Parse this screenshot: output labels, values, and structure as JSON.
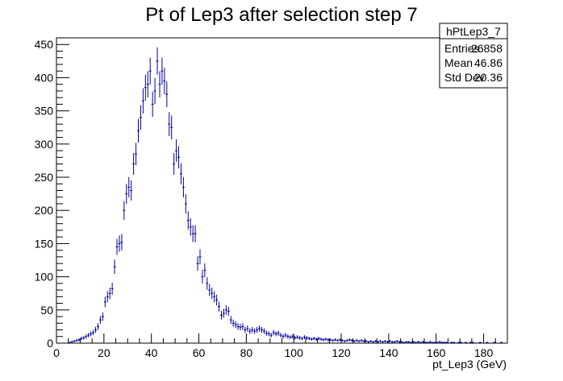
{
  "chart_data": {
    "type": "histogram",
    "title": "Pt of Lep3 after selection step 7",
    "xlabel": "pt_Lep3  (GeV)",
    "ylabel": "",
    "xlim": [
      0,
      190
    ],
    "ylim": [
      0,
      460
    ],
    "bin_width": 1,
    "error_bars": true,
    "marker_color": "#000099",
    "x_ticks": [
      0,
      20,
      40,
      60,
      80,
      100,
      120,
      140,
      160,
      180
    ],
    "y_ticks": [
      0,
      50,
      100,
      150,
      200,
      250,
      300,
      350,
      400,
      450
    ],
    "bins": [
      [
        0,
        0
      ],
      [
        1,
        0
      ],
      [
        2,
        0
      ],
      [
        3,
        0
      ],
      [
        4,
        0
      ],
      [
        5,
        1
      ],
      [
        6,
        2
      ],
      [
        7,
        3
      ],
      [
        8,
        4
      ],
      [
        9,
        5
      ],
      [
        10,
        7
      ],
      [
        11,
        8
      ],
      [
        12,
        10
      ],
      [
        13,
        12
      ],
      [
        14,
        14
      ],
      [
        15,
        16
      ],
      [
        16,
        20
      ],
      [
        17,
        25
      ],
      [
        18,
        35
      ],
      [
        19,
        40
      ],
      [
        20,
        62
      ],
      [
        21,
        70
      ],
      [
        22,
        75
      ],
      [
        23,
        82
      ],
      [
        24,
        115
      ],
      [
        25,
        145
      ],
      [
        26,
        150
      ],
      [
        27,
        152
      ],
      [
        28,
        200
      ],
      [
        29,
        225
      ],
      [
        30,
        235
      ],
      [
        31,
        230
      ],
      [
        32,
        270
      ],
      [
        33,
        285
      ],
      [
        34,
        320
      ],
      [
        35,
        340
      ],
      [
        36,
        365
      ],
      [
        37,
        385
      ],
      [
        38,
        390
      ],
      [
        39,
        410
      ],
      [
        40,
        360
      ],
      [
        41,
        380
      ],
      [
        42,
        425
      ],
      [
        43,
        390
      ],
      [
        44,
        410
      ],
      [
        45,
        395
      ],
      [
        46,
        375
      ],
      [
        47,
        330
      ],
      [
        48,
        325
      ],
      [
        49,
        270
      ],
      [
        50,
        290
      ],
      [
        51,
        280
      ],
      [
        52,
        255
      ],
      [
        53,
        235
      ],
      [
        54,
        210
      ],
      [
        55,
        185
      ],
      [
        56,
        175
      ],
      [
        57,
        165
      ],
      [
        58,
        165
      ],
      [
        59,
        120
      ],
      [
        60,
        130
      ],
      [
        61,
        100
      ],
      [
        62,
        110
      ],
      [
        63,
        90
      ],
      [
        64,
        80
      ],
      [
        65,
        75
      ],
      [
        66,
        70
      ],
      [
        67,
        65
      ],
      [
        68,
        55
      ],
      [
        69,
        42
      ],
      [
        70,
        45
      ],
      [
        71,
        50
      ],
      [
        72,
        48
      ],
      [
        73,
        35
      ],
      [
        74,
        30
      ],
      [
        75,
        28
      ],
      [
        76,
        25
      ],
      [
        77,
        24
      ],
      [
        78,
        25
      ],
      [
        79,
        20
      ],
      [
        80,
        22
      ],
      [
        81,
        18
      ],
      [
        82,
        20
      ],
      [
        83,
        18
      ],
      [
        84,
        20
      ],
      [
        85,
        22
      ],
      [
        86,
        20
      ],
      [
        87,
        18
      ],
      [
        88,
        15
      ],
      [
        89,
        14
      ],
      [
        90,
        12
      ],
      [
        91,
        16
      ],
      [
        92,
        14
      ],
      [
        93,
        15
      ],
      [
        94,
        12
      ],
      [
        95,
        10
      ],
      [
        96,
        12
      ],
      [
        97,
        10
      ],
      [
        98,
        9
      ],
      [
        99,
        10
      ],
      [
        100,
        8
      ],
      [
        101,
        9
      ],
      [
        102,
        8
      ],
      [
        103,
        7
      ],
      [
        104,
        9
      ],
      [
        105,
        8
      ],
      [
        106,
        7
      ],
      [
        107,
        6
      ],
      [
        108,
        7
      ],
      [
        109,
        6
      ],
      [
        110,
        7
      ],
      [
        111,
        6
      ],
      [
        112,
        5
      ],
      [
        113,
        6
      ],
      [
        114,
        5
      ],
      [
        115,
        5
      ],
      [
        116,
        4
      ],
      [
        117,
        5
      ],
      [
        118,
        4
      ],
      [
        119,
        5
      ],
      [
        120,
        4
      ],
      [
        121,
        3
      ],
      [
        122,
        4
      ],
      [
        123,
        5
      ],
      [
        124,
        4
      ],
      [
        125,
        3
      ],
      [
        126,
        4
      ],
      [
        127,
        3
      ],
      [
        128,
        4
      ],
      [
        129,
        3
      ],
      [
        130,
        3
      ],
      [
        131,
        2
      ],
      [
        132,
        3
      ],
      [
        133,
        2
      ],
      [
        134,
        3
      ],
      [
        135,
        2
      ],
      [
        136,
        3
      ],
      [
        137,
        2
      ],
      [
        138,
        3
      ],
      [
        139,
        2
      ],
      [
        140,
        3
      ],
      [
        141,
        2
      ],
      [
        142,
        2
      ],
      [
        143,
        3
      ],
      [
        144,
        2
      ],
      [
        145,
        2
      ],
      [
        146,
        1
      ],
      [
        147,
        2
      ],
      [
        148,
        2
      ],
      [
        149,
        1
      ],
      [
        150,
        2
      ],
      [
        151,
        1
      ],
      [
        152,
        2
      ],
      [
        153,
        1
      ],
      [
        154,
        2
      ],
      [
        155,
        1
      ],
      [
        156,
        1
      ],
      [
        157,
        2
      ],
      [
        158,
        1
      ],
      [
        159,
        1
      ],
      [
        160,
        1
      ],
      [
        161,
        2
      ],
      [
        162,
        1
      ],
      [
        163,
        1
      ],
      [
        164,
        1
      ],
      [
        165,
        0
      ],
      [
        166,
        1
      ],
      [
        167,
        1
      ],
      [
        168,
        0
      ],
      [
        169,
        1
      ],
      [
        170,
        1
      ],
      [
        171,
        0
      ],
      [
        172,
        1
      ],
      [
        173,
        0
      ],
      [
        174,
        1
      ],
      [
        175,
        1
      ],
      [
        176,
        0
      ],
      [
        177,
        0
      ],
      [
        178,
        1
      ],
      [
        179,
        0
      ],
      [
        180,
        0
      ],
      [
        181,
        1
      ],
      [
        182,
        0
      ],
      [
        183,
        0
      ],
      [
        184,
        1
      ],
      [
        185,
        0
      ],
      [
        186,
        0
      ],
      [
        187,
        1
      ],
      [
        188,
        0
      ],
      [
        189,
        0
      ]
    ]
  },
  "stats_box": {
    "name": "hPtLep3_7",
    "rows": [
      {
        "label": "Entries",
        "value": "26858"
      },
      {
        "label": "Mean",
        "value": "46.86"
      },
      {
        "label": "Std Dev",
        "value": "20.36"
      }
    ]
  }
}
